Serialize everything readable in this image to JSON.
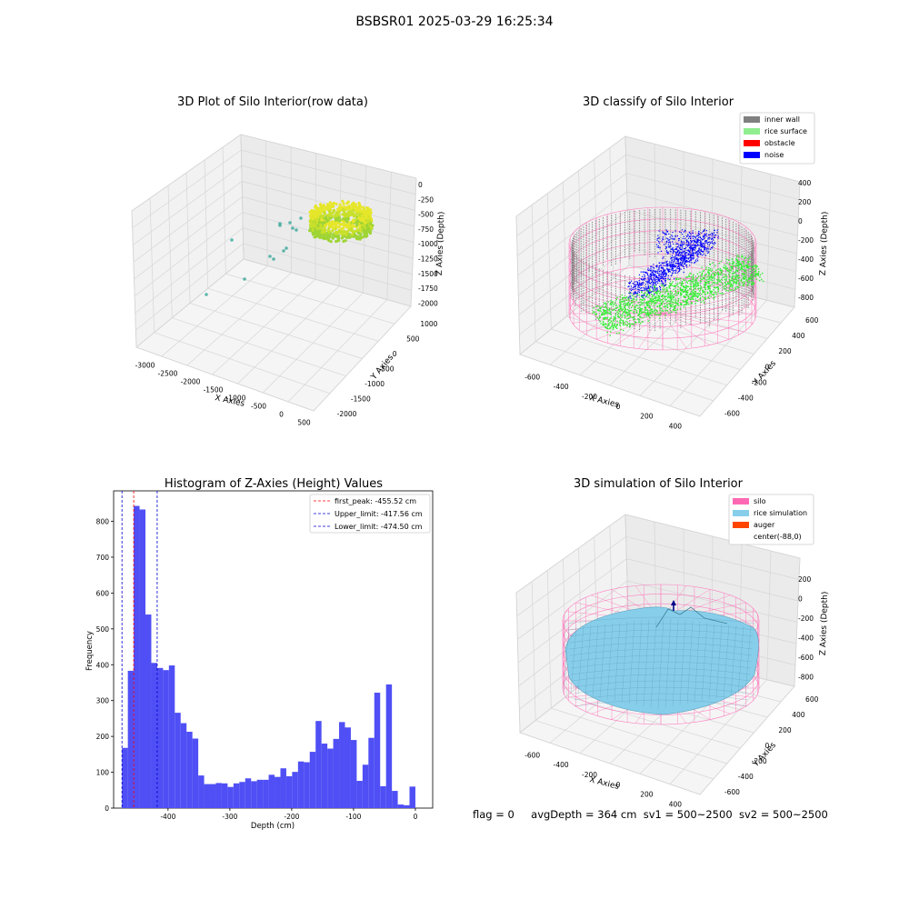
{
  "suptitle": "BSBSR01 2025-03-29 16:25:34",
  "footer": {
    "flag": "flag = 0",
    "avg": "avgDepth = 364 cm",
    "sv1": "sv1 = 500~2500",
    "sv2": "sv2 = 500~2500"
  },
  "colors": {
    "hist_bar": "#4f4ff5",
    "first_peak": "#ff0000",
    "limit": "#0000cc",
    "inner_wall": "#808080",
    "rice_surface": "#90ee90",
    "obstacle": "#ff0000",
    "noise": "#0000ff",
    "silo": "#ff69b4",
    "rice_sim": "#87ceeb",
    "auger": "#ff4500"
  },
  "chart_data": [
    {
      "type": "scatter",
      "subtype": "3d",
      "title": "3D Plot of Silo Interior(row data)",
      "xlabel": "X Axies",
      "ylabel": "Y Axies",
      "zlabel": "Z Axies (Depth)",
      "x_ticks": [
        "-3000",
        "-2500",
        "-2000",
        "-1500",
        "-1000",
        "-500",
        "0",
        "500"
      ],
      "y_ticks": [
        "1000",
        "500",
        "0",
        "-500",
        "-1000",
        "-1500",
        "-2000"
      ],
      "z_ticks": [
        "0",
        "-250",
        "-500",
        "-750",
        "-1000",
        "-1250",
        "-1500",
        "-1750",
        "-2000"
      ],
      "xlim": [
        -3200,
        700
      ],
      "ylim": [
        -2100,
        1100
      ],
      "zlim": [
        -2050,
        50
      ]
    },
    {
      "type": "scatter",
      "subtype": "3d",
      "title": "3D classify of Silo Interior",
      "xlabel": "X Axies",
      "ylabel": "Y Axies",
      "zlabel": "Z Axies (Depth)",
      "x_ticks": [
        "-600",
        "-400",
        "-200",
        "0",
        "200",
        "400"
      ],
      "y_ticks": [
        "600",
        "400",
        "200",
        "0",
        "-200",
        "-400",
        "-600"
      ],
      "z_ticks": [
        "400",
        "200",
        "0",
        "-200",
        "-400",
        "-600",
        "-800"
      ],
      "legend": [
        "inner wall",
        "rice surface",
        "obstacle",
        "noise"
      ],
      "legend_position": "top-right"
    },
    {
      "type": "bar",
      "subtype": "histogram",
      "title": "Histogram of Z-Axies (Height) Values",
      "xlabel": "Depth (cm)",
      "ylabel": "Frequency",
      "bin_start": -474.5,
      "bin_width": 9.49,
      "values": [
        168,
        383,
        843,
        833,
        540,
        405,
        391,
        385,
        398,
        266,
        237,
        213,
        194,
        91,
        67,
        67,
        70,
        69,
        59,
        69,
        73,
        83,
        75,
        79,
        79,
        93,
        87,
        111,
        89,
        101,
        130,
        128,
        157,
        243,
        180,
        166,
        193,
        240,
        225,
        190,
        76,
        121,
        196,
        322,
        61,
        345,
        48,
        10,
        8,
        60
      ],
      "x_ticks": [
        -400,
        -300,
        -200,
        -100,
        0
      ],
      "y_ticks": [
        0,
        100,
        200,
        300,
        400,
        500,
        600,
        700,
        800
      ],
      "xlim": [
        -488,
        28
      ],
      "ylim": [
        0,
        885
      ],
      "vlines": [
        {
          "x": -455.52,
          "label": "first_peak: -455.52 cm",
          "style": "first_peak"
        },
        {
          "x": -417.56,
          "label": "Upper_limit: -417.56 cm",
          "style": "limit"
        },
        {
          "x": -474.5,
          "label": "Lower_limit: -474.50 cm",
          "style": "limit"
        }
      ],
      "legend_position": "top-right"
    },
    {
      "type": "area",
      "subtype": "3d-surface",
      "title": "3D simulation of Silo Interior",
      "xlabel": "X Axies",
      "ylabel": "Y Axies",
      "zlabel": "Z Axies (Depth)",
      "x_ticks": [
        "-600",
        "-400",
        "-200",
        "0",
        "200",
        "400"
      ],
      "y_ticks": [
        "600",
        "400",
        "200",
        "0",
        "-200",
        "-400",
        "-600"
      ],
      "z_ticks": [
        "200",
        "0",
        "-200",
        "-400",
        "-600",
        "-800"
      ],
      "legend": [
        "silo",
        "rice simulation",
        "auger",
        "center(-88,0)"
      ],
      "legend_position": "top-right"
    }
  ]
}
